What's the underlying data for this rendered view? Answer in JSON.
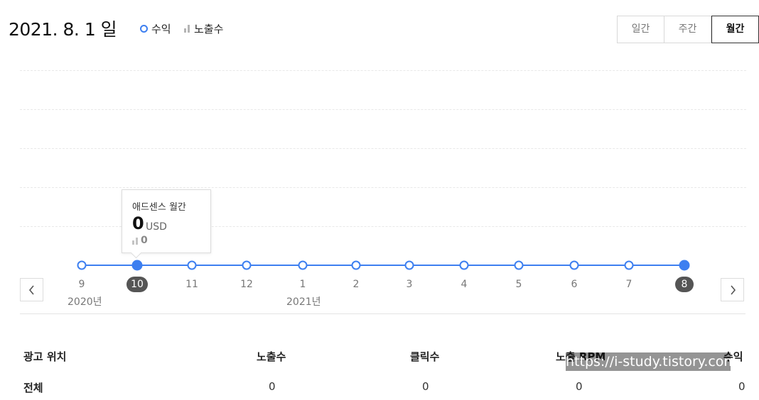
{
  "header": {
    "date_title": "2021. 8. 1 일",
    "legend_revenue": "수익",
    "legend_impressions": "노출수"
  },
  "period_tabs": [
    {
      "label": "일간",
      "active": false
    },
    {
      "label": "주간",
      "active": false
    },
    {
      "label": "월간",
      "active": true
    }
  ],
  "tooltip": {
    "title": "애드센스 월간",
    "value": "0",
    "unit": "USD",
    "impressions": "0"
  },
  "chart_data": {
    "type": "line",
    "categories": [
      "9",
      "10",
      "11",
      "12",
      "1",
      "2",
      "3",
      "4",
      "5",
      "6",
      "7",
      "8"
    ],
    "year_labels": [
      "2020년",
      "2021년"
    ],
    "series": [
      {
        "name": "수익",
        "values": [
          0,
          0,
          0,
          0,
          0,
          0,
          0,
          0,
          0,
          0,
          0,
          0
        ],
        "color": "#3d7ff0"
      }
    ],
    "selected": [
      "10",
      "8"
    ],
    "grid": true
  },
  "table": {
    "headers": [
      "광고 위치",
      "노출수",
      "클릭수",
      "노출 RPM",
      "수익"
    ],
    "rows": [
      [
        "전체",
        "0",
        "0",
        "0",
        "0"
      ]
    ]
  },
  "watermark": "https://i-study.tistory.com",
  "colors": {
    "accent": "#3d7ff0",
    "selected_badge": "#555555"
  }
}
